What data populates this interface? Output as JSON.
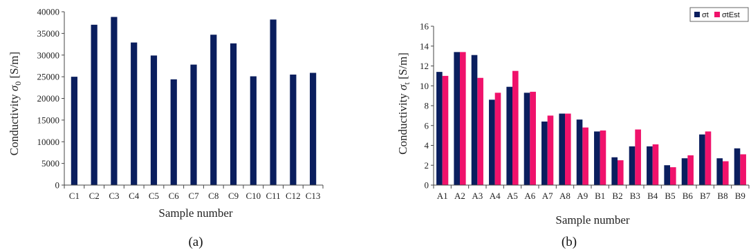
{
  "chart_data": [
    {
      "type": "bar",
      "panel_label": "(a)",
      "xlabel": "Sample number",
      "ylabel": "Conductivity σ0 [S/m]",
      "ylabel_main": "Conductivity ",
      "ylabel_symbol": "σ",
      "ylabel_sub": "0",
      "ylabel_unit": " [S/m]",
      "ylim": [
        0,
        40000
      ],
      "yticks": [
        "0",
        "5000",
        "10000",
        "15000",
        "20000",
        "25000",
        "30000",
        "35000",
        "40000"
      ],
      "categories": [
        "C1",
        "C2",
        "C3",
        "C4",
        "C5",
        "C6",
        "C7",
        "C8",
        "C9",
        "C10",
        "C11",
        "C12",
        "C13"
      ],
      "values": [
        25000,
        37000,
        38800,
        32900,
        29900,
        24400,
        27800,
        34700,
        32700,
        25100,
        38200,
        25500,
        25900
      ],
      "color": "#0a1e5e",
      "grid": false
    },
    {
      "type": "bar",
      "panel_label": "(b)",
      "xlabel": "Sample number",
      "ylabel": "Conductivity σt [S/m]",
      "ylabel_main": "Conductivity ",
      "ylabel_symbol": "σ",
      "ylabel_sub": "t",
      "ylabel_unit": " [S/m]",
      "ylim": [
        0,
        16
      ],
      "yticks": [
        "0",
        "2",
        "4",
        "6",
        "8",
        "10",
        "12",
        "14",
        "16"
      ],
      "legend_placement": "top-right",
      "categories": [
        "A1",
        "A2",
        "A3",
        "A4",
        "A5",
        "A6",
        "A7",
        "A8",
        "A9",
        "B1",
        "B2",
        "B3",
        "B4",
        "B5",
        "B6",
        "B7",
        "B8",
        "B9"
      ],
      "series": [
        {
          "name": "σt",
          "color": "#0a1e5e",
          "values": [
            11.4,
            13.4,
            13.1,
            8.6,
            9.9,
            9.3,
            6.4,
            7.2,
            6.6,
            5.4,
            2.8,
            3.9,
            3.9,
            2.0,
            2.7,
            5.1,
            2.7,
            3.7
          ]
        },
        {
          "name": "σtEst",
          "color": "#f0126b",
          "values": [
            11.0,
            13.4,
            10.8,
            9.3,
            11.5,
            9.4,
            7.0,
            7.2,
            5.8,
            5.5,
            2.5,
            5.6,
            4.1,
            1.8,
            3.0,
            5.4,
            2.4,
            3.1
          ]
        }
      ],
      "grid": false
    }
  ]
}
